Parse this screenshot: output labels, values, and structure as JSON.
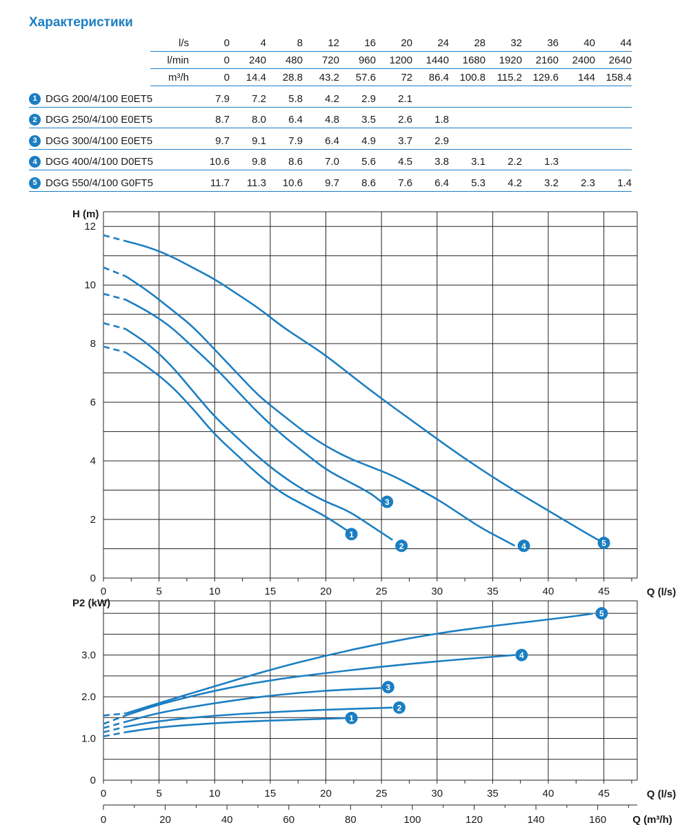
{
  "title": "Характеристики",
  "table": {
    "header_rows": [
      {
        "label": "l/s",
        "values": [
          "0",
          "4",
          "8",
          "12",
          "16",
          "20",
          "24",
          "28",
          "32",
          "36",
          "40",
          "44"
        ]
      },
      {
        "label": "l/min",
        "values": [
          "0",
          "240",
          "480",
          "720",
          "960",
          "1200",
          "1440",
          "1680",
          "1920",
          "2160",
          "2400",
          "2640"
        ]
      },
      {
        "label": "m³/h",
        "values": [
          "0",
          "14.4",
          "28.8",
          "43.2",
          "57.6",
          "72",
          "86.4",
          "100.8",
          "115.2",
          "129.6",
          "144",
          "158.4"
        ]
      }
    ],
    "models": [
      {
        "num": "1",
        "name": "DGG 200/4/100 E0ET5",
        "values": [
          "7.9",
          "7.2",
          "5.8",
          "4.2",
          "2.9",
          "2.1",
          "",
          "",
          "",
          "",
          "",
          ""
        ]
      },
      {
        "num": "2",
        "name": "DGG 250/4/100 E0ET5",
        "values": [
          "8.7",
          "8.0",
          "6.4",
          "4.8",
          "3.5",
          "2.6",
          "1.8",
          "",
          "",
          "",
          "",
          ""
        ]
      },
      {
        "num": "3",
        "name": "DGG 300/4/100 E0ET5",
        "values": [
          "9.7",
          "9.1",
          "7.9",
          "6.4",
          "4.9",
          "3.7",
          "2.9",
          "",
          "",
          "",
          "",
          ""
        ]
      },
      {
        "num": "4",
        "name": "DGG 400/4/100 D0ET5",
        "values": [
          "10.6",
          "9.8",
          "8.6",
          "7.0",
          "5.6",
          "4.5",
          "3.8",
          "3.1",
          "2.2",
          "1.3",
          "",
          ""
        ]
      },
      {
        "num": "5",
        "name": "DGG 550/4/100 G0FT5",
        "values": [
          "11.7",
          "11.3",
          "10.6",
          "9.7",
          "8.6",
          "7.6",
          "6.4",
          "5.3",
          "4.2",
          "3.2",
          "2.3",
          "1.4"
        ]
      }
    ]
  },
  "chart_data": [
    {
      "type": "line",
      "title": "",
      "ylabel": "H (m)",
      "xlabel": "Q (l/s)",
      "xlim": [
        0,
        48
      ],
      "ylim": [
        0,
        12.5
      ],
      "xticks": [
        "0",
        "5",
        "10",
        "15",
        "20",
        "25",
        "30",
        "35",
        "40",
        "45"
      ],
      "yticks": [
        "0",
        "2",
        "4",
        "6",
        "8",
        "10",
        "12"
      ],
      "series": [
        {
          "name": "1",
          "x": [
            0,
            2,
            4,
            6,
            8,
            10,
            12,
            14,
            16,
            18,
            20,
            22
          ],
          "y": [
            7.9,
            7.7,
            7.2,
            6.6,
            5.8,
            4.9,
            4.2,
            3.5,
            2.9,
            2.5,
            2.1,
            1.6
          ]
        },
        {
          "name": "2",
          "x": [
            0,
            2,
            4,
            6,
            8,
            10,
            12,
            14,
            16,
            18,
            20,
            22,
            24,
            26
          ],
          "y": [
            8.7,
            8.5,
            8.0,
            7.3,
            6.4,
            5.5,
            4.8,
            4.1,
            3.5,
            3.0,
            2.6,
            2.3,
            1.8,
            1.3
          ]
        },
        {
          "name": "3",
          "x": [
            0,
            2,
            4,
            6,
            8,
            10,
            12,
            14,
            16,
            18,
            20,
            22,
            24,
            25
          ],
          "y": [
            9.7,
            9.5,
            9.1,
            8.6,
            7.9,
            7.2,
            6.4,
            5.6,
            4.9,
            4.3,
            3.7,
            3.3,
            2.9,
            2.6
          ]
        },
        {
          "name": "4",
          "x": [
            0,
            2,
            4,
            6,
            8,
            10,
            12,
            14,
            16,
            18,
            20,
            22,
            24,
            26,
            28,
            30,
            32,
            34,
            36,
            37
          ],
          "y": [
            10.6,
            10.3,
            9.8,
            9.2,
            8.6,
            7.8,
            7.0,
            6.2,
            5.6,
            5.0,
            4.5,
            4.1,
            3.8,
            3.5,
            3.1,
            2.7,
            2.2,
            1.7,
            1.3,
            1.1
          ]
        },
        {
          "name": "5",
          "x": [
            0,
            2,
            4,
            6,
            8,
            10,
            12,
            14,
            16,
            18,
            20,
            24,
            28,
            32,
            36,
            40,
            44,
            45
          ],
          "y": [
            11.7,
            11.5,
            11.3,
            11.0,
            10.6,
            10.2,
            9.7,
            9.2,
            8.6,
            8.1,
            7.6,
            6.4,
            5.3,
            4.2,
            3.2,
            2.3,
            1.4,
            1.2
          ]
        }
      ],
      "labels": [
        {
          "name": "1",
          "x": 22.3,
          "y": 1.5
        },
        {
          "name": "2",
          "x": 26.8,
          "y": 1.1
        },
        {
          "name": "3",
          "x": 25.5,
          "y": 2.6
        },
        {
          "name": "4",
          "x": 37.8,
          "y": 1.1
        },
        {
          "name": "5",
          "x": 45.0,
          "y": 1.2
        }
      ]
    },
    {
      "type": "line",
      "title": "",
      "ylabel": "P2 (kW)",
      "xlabel": "Q (l/s)",
      "xlabel2": "Q (m³/h)",
      "xlim": [
        0,
        48
      ],
      "ylim": [
        0,
        4.3
      ],
      "xticks": [
        "0",
        "5",
        "10",
        "15",
        "20",
        "25",
        "30",
        "35",
        "40",
        "45"
      ],
      "x2ticks": [
        "0",
        "20",
        "40",
        "60",
        "80",
        "100",
        "120",
        "140",
        "160"
      ],
      "yticks": [
        "0",
        "1.0",
        "2.0",
        "3.0"
      ],
      "series": [
        {
          "name": "1",
          "x": [
            0,
            2,
            5,
            10,
            15,
            20,
            22
          ],
          "y": [
            1.05,
            1.15,
            1.27,
            1.37,
            1.43,
            1.47,
            1.49
          ]
        },
        {
          "name": "2",
          "x": [
            0,
            2,
            5,
            10,
            15,
            20,
            26
          ],
          "y": [
            1.15,
            1.28,
            1.42,
            1.55,
            1.63,
            1.69,
            1.74
          ]
        },
        {
          "name": "3",
          "x": [
            0,
            2,
            5,
            10,
            15,
            20,
            25
          ],
          "y": [
            1.25,
            1.4,
            1.62,
            1.85,
            2.03,
            2.15,
            2.21
          ]
        },
        {
          "name": "4",
          "x": [
            0,
            2,
            5,
            10,
            15,
            20,
            25,
            30,
            37
          ],
          "y": [
            1.35,
            1.55,
            1.82,
            2.15,
            2.4,
            2.57,
            2.72,
            2.85,
            3.0
          ]
        },
        {
          "name": "5",
          "x": [
            0,
            2,
            5,
            10,
            15,
            20,
            25,
            30,
            35,
            40,
            44
          ],
          "y": [
            1.55,
            1.6,
            1.85,
            2.25,
            2.65,
            2.99,
            3.28,
            3.52,
            3.7,
            3.85,
            3.99
          ]
        }
      ],
      "labels": [
        {
          "name": "1",
          "x": 22.3,
          "y": 1.49
        },
        {
          "name": "2",
          "x": 26.6,
          "y": 1.74
        },
        {
          "name": "3",
          "x": 25.6,
          "y": 2.23
        },
        {
          "name": "4",
          "x": 37.6,
          "y": 3.0
        },
        {
          "name": "5",
          "x": 44.8,
          "y": 4.0
        }
      ]
    }
  ],
  "colors": {
    "curve": "#1b7ec2",
    "grid": "#1a1a1a",
    "accent": "#1b7ec2"
  }
}
